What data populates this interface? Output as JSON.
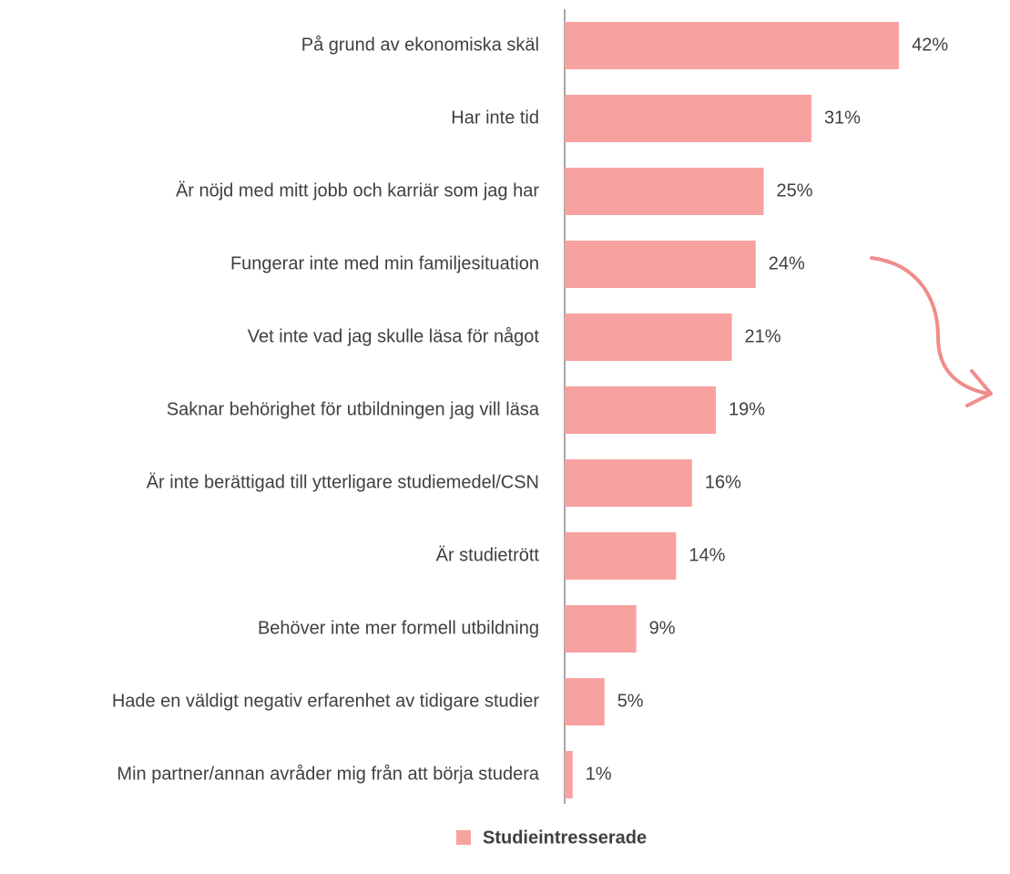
{
  "chart_data": {
    "type": "bar",
    "orientation": "horizontal",
    "categories": [
      "På grund av ekonomiska skäl",
      "Har inte tid",
      "Är nöjd med mitt jobb och karriär som jag har",
      "Fungerar inte med min familjesituation",
      "Vet inte vad jag skulle läsa för något",
      "Saknar behörighet för utbildningen jag vill läsa",
      "Är inte berättigad till ytterligare studiemedel/CSN",
      "Är studietrött",
      "Behöver inte mer formell utbildning",
      "Hade en väldigt negativ erfarenhet av tidigare studier",
      "Min partner/annan avråder mig från att börja studera"
    ],
    "series": [
      {
        "name": "Studieintresserade",
        "color": "#f7a1a1",
        "values": [
          42,
          31,
          25,
          24,
          21,
          19,
          16,
          14,
          9,
          5,
          1
        ],
        "value_labels": [
          "42%",
          "31%",
          "25%",
          "24%",
          "21%",
          "19%",
          "16%",
          "14%",
          "9%",
          "5%",
          "1%"
        ]
      }
    ],
    "legend": "bottom"
  }
}
